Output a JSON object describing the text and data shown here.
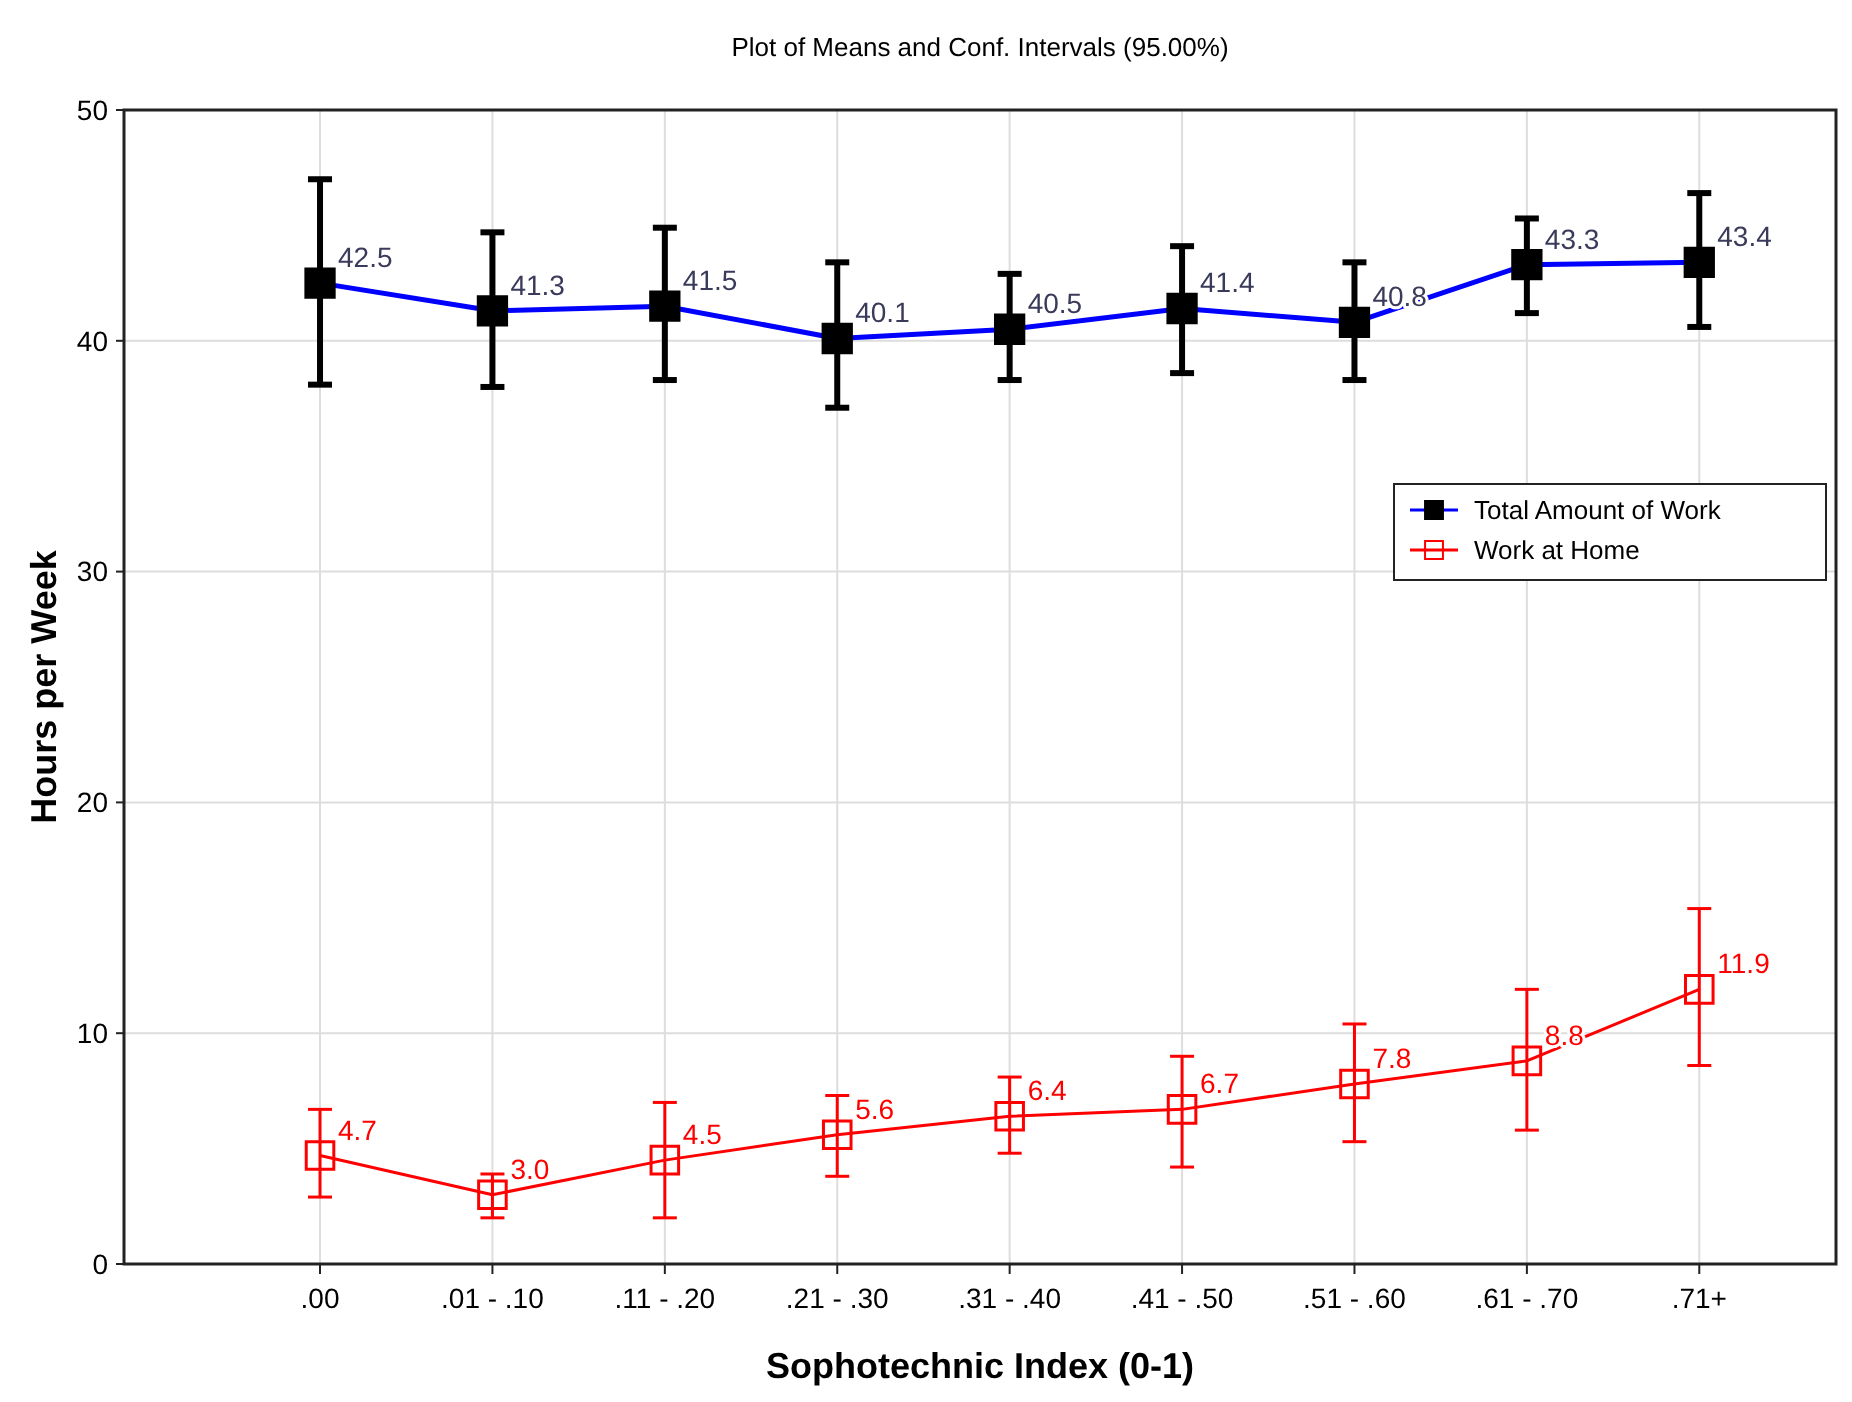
{
  "chart_data": {
    "type": "line",
    "title": "Plot of Means and Conf. Intervals (95.00%)",
    "xlabel": "Sophotechnic Index (0-1)",
    "ylabel": "Hours per Week",
    "categories": [
      ".00",
      ".01 - .10",
      ".11 - .20",
      ".21 - .30",
      ".31 - .40",
      ".41 - .50",
      ".51 - .60",
      ".61 - .70",
      ".71+"
    ],
    "series": [
      {
        "name": "Total Amount of Work",
        "color": "#0000ff",
        "colors": [
          "#000000",
          "#000000",
          "#000000",
          "#000000",
          "#000000",
          "#000000",
          "#000000",
          "#000000",
          "#000000"
        ],
        "value_labels": [
          "42.5",
          "41.3",
          "41.5",
          "40.1",
          "40.5",
          "41.4",
          "40.8",
          "43.3",
          "43.4"
        ],
        "values": [
          42.5,
          41.3,
          41.5,
          40.1,
          40.5,
          41.4,
          40.8,
          43.3,
          43.4
        ],
        "errors": [
          [
            38.1,
            47.0
          ],
          [
            38.0,
            44.7
          ],
          [
            38.3,
            44.9
          ],
          [
            37.1,
            43.4
          ],
          [
            38.3,
            42.9
          ],
          [
            38.6,
            44.1
          ],
          [
            38.3,
            43.4
          ],
          [
            41.2,
            45.3
          ],
          [
            40.6,
            46.4
          ]
        ]
      },
      {
        "name": "Work at Home",
        "color": "#ff0000",
        "value_labels": [
          "4.7",
          "3.0",
          "4.5",
          "5.6",
          "6.4",
          "6.7",
          "7.8",
          "8.8",
          "11.9"
        ],
        "values": [
          4.7,
          3.0,
          4.5,
          5.6,
          6.4,
          6.7,
          7.8,
          8.8,
          11.9
        ],
        "errors": [
          [
            2.9,
            6.7
          ],
          [
            2.0,
            3.9
          ],
          [
            2.0,
            7.0
          ],
          [
            3.8,
            7.3
          ],
          [
            4.8,
            8.1
          ],
          [
            4.2,
            9.0
          ],
          [
            5.3,
            10.4
          ],
          [
            5.8,
            11.9
          ],
          [
            8.6,
            15.4
          ]
        ]
      }
    ],
    "ylim": [
      0,
      50
    ],
    "yticks": [
      0,
      10,
      20,
      30,
      40,
      50
    ],
    "grid": true,
    "legend": "right",
    "marker": "square"
  }
}
